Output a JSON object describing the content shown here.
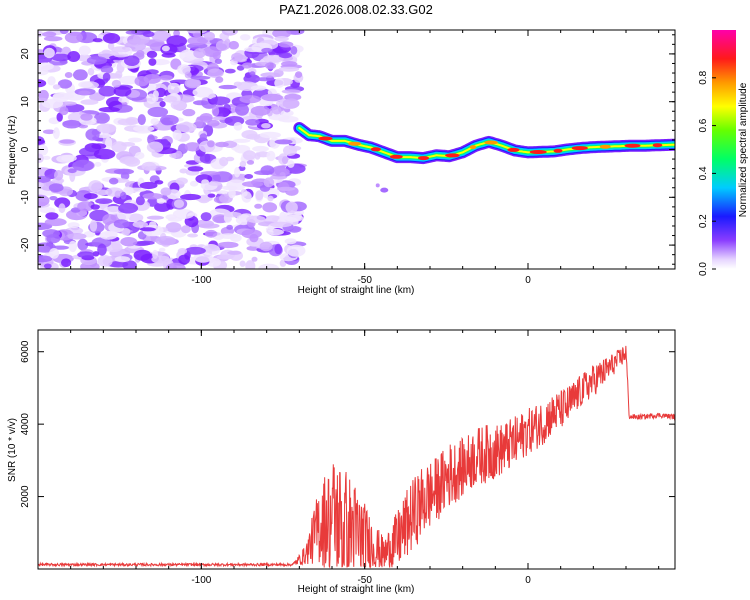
{
  "title": "PAZ1.2026.008.02.33.G02",
  "chart_data": [
    {
      "type": "heatmap",
      "title": "PAZ1.2026.008.02.33.G02",
      "xlabel": "Height of straight line (km)",
      "ylabel": "Frequency (Hz)",
      "xlim": [
        -150,
        45
      ],
      "ylim": [
        -25,
        25
      ],
      "x_ticks": [
        -100,
        -50,
        0
      ],
      "y_ticks": [
        -20,
        -10,
        0,
        10,
        20
      ],
      "noise_region_x": [
        -150,
        -70
      ],
      "signal_track": {
        "x": [
          -70,
          -67,
          -64,
          -60,
          -56,
          -52,
          -48,
          -44,
          -40,
          -36,
          -32,
          -28,
          -24,
          -20,
          -16,
          -12,
          -8,
          -4,
          0,
          4,
          8,
          12,
          16,
          20,
          24,
          28,
          32,
          36,
          40,
          45
        ],
        "freq": [
          4.5,
          3,
          2.8,
          1.8,
          1.8,
          1.0,
          0.4,
          -0.6,
          -1.6,
          -1.6,
          -1.8,
          -1.2,
          -1.4,
          -0.6,
          0.8,
          1.6,
          0.8,
          -0.2,
          -0.6,
          -0.5,
          -0.4,
          0.0,
          0.3,
          0.5,
          0.6,
          0.7,
          0.8,
          0.8,
          0.9,
          1.0
        ]
      },
      "colorbar": {
        "label": "Normalized spectral amplitude",
        "ticks": [
          "0.0",
          "0.2",
          "0.4",
          "0.6",
          "0.8"
        ],
        "range": [
          0,
          1
        ]
      }
    },
    {
      "type": "line",
      "xlabel": "Height of straight line (km)",
      "ylabel": "SNR (10 * v/v)",
      "xlim": [
        -150,
        45
      ],
      "ylim": [
        0,
        6600
      ],
      "x_ticks": [
        -100,
        -50,
        0
      ],
      "y_ticks": [
        2000,
        4000,
        6000
      ],
      "series": [
        {
          "name": "SNR",
          "color": "#e83a3a",
          "envelope": {
            "x": [
              -150,
              -72,
              -68,
              -64,
              -60,
              -56,
              -52,
              -48,
              -44,
              -40,
              -36,
              -32,
              -28,
              -24,
              -20,
              -16,
              -12,
              -8,
              -4,
              0,
              4,
              8,
              12,
              16,
              20,
              24,
              28,
              30,
              31,
              35,
              40,
              45
            ],
            "base": [
              120,
              120,
              400,
              1200,
              1500,
              1200,
              900,
              700,
              400,
              800,
              1400,
              1900,
              2200,
              2600,
              2800,
              3100,
              3200,
              3300,
              3500,
              3800,
              4000,
              4300,
              4500,
              4900,
              5200,
              5500,
              5800,
              6000,
              4200,
              4200,
              4250,
              4200
            ],
            "amp": [
              40,
              40,
              300,
              1200,
              1800,
              1800,
              1500,
              800,
              500,
              900,
              1100,
              1100,
              1000,
              1000,
              900,
              900,
              900,
              800,
              800,
              700,
              700,
              600,
              600,
              500,
              500,
              400,
              300,
              300,
              80,
              80,
              80,
              80
            ]
          }
        }
      ]
    }
  ]
}
